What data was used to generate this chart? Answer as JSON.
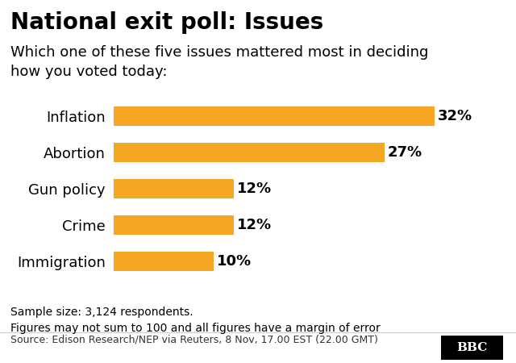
{
  "title": "National exit poll: Issues",
  "subtitle": "Which one of these five issues mattered most in deciding\nhow you voted today:",
  "categories": [
    "Immigration",
    "Crime",
    "Gun policy",
    "Abortion",
    "Inflation"
  ],
  "values": [
    10,
    12,
    12,
    27,
    32
  ],
  "bar_color": "#F5A623",
  "label_color": "#000000",
  "background_color": "#FFFFFF",
  "xlim": [
    0,
    36
  ],
  "footnote": "Sample size: 3,124 respondents.\nFigures may not sum to 100 and all figures have a margin of error",
  "source": "Source: Edison Research/NEP via Reuters, 8 Nov, 17.00 EST (22.00 GMT)",
  "bbc_logo": "BBC",
  "title_fontsize": 20,
  "subtitle_fontsize": 13,
  "label_fontsize": 13,
  "bar_label_fontsize": 13,
  "footnote_fontsize": 10,
  "source_fontsize": 9,
  "category_fontsize": 13
}
